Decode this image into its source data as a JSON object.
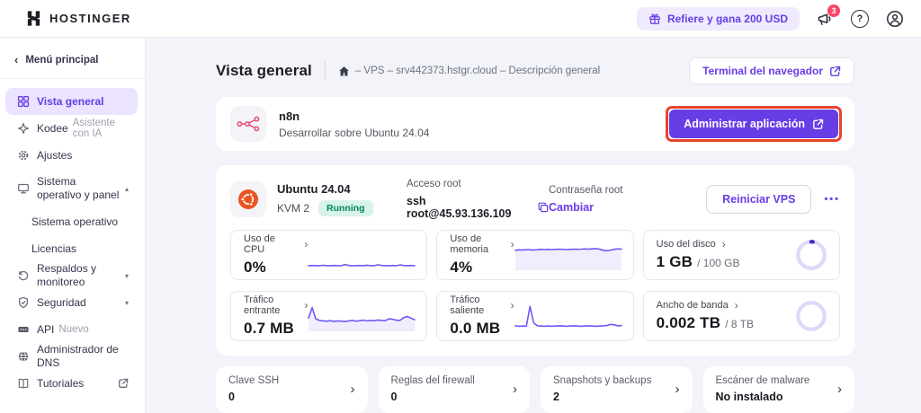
{
  "colors": {
    "accent": "#673de6",
    "highlight_box": "#e8432d",
    "status_running_bg": "#d8f3e7",
    "status_running_text": "#00875a",
    "sparkline": "#6a5bf7",
    "ring_progress": "#5025d1"
  },
  "icons": {
    "chevron_right": "›",
    "chevron_left": "‹",
    "caret_up": "▴",
    "caret_down": "▾",
    "ellipsis": "•••",
    "question": "?"
  },
  "topbar": {
    "brand": "HOSTINGER",
    "referral": "Refiere y gana 200 USD",
    "notifications": "3"
  },
  "sidebar": {
    "back": "Menú principal",
    "items": [
      {
        "label": "Vista general"
      },
      {
        "label": "Kodee",
        "suffix": "Asistente con IA"
      },
      {
        "label": "Ajustes"
      },
      {
        "label": "Sistema operativo y panel"
      },
      {
        "label": "Sistema operativo"
      },
      {
        "label": "Licencias"
      },
      {
        "label": "Respaldos y monitoreo"
      },
      {
        "label": "Seguridad"
      },
      {
        "label": "API",
        "suffix": "Nuevo"
      },
      {
        "label": "Administrador de DNS"
      },
      {
        "label": "Tutoriales"
      }
    ]
  },
  "page": {
    "title": "Vista general",
    "breadcrumb": "– VPS – srv442373.hstgr.cloud – Descripción general",
    "terminal_button": "Terminal del navegador"
  },
  "app_card": {
    "name": "n8n",
    "description": "Desarrollar sobre Ubuntu 24.04",
    "manage_button": "Administrar aplicación"
  },
  "vps": {
    "os": "Ubuntu 24.04",
    "plan": "KVM 2",
    "status": "Running",
    "access_label": "Acceso root",
    "access_value": "ssh root@45.93.136.109",
    "password_label": "Contraseña root",
    "password_action": "Cambiar",
    "restart_button": "Reiniciar VPS"
  },
  "metrics": [
    {
      "label": "Uso de CPU",
      "value": "0%",
      "suffix": "",
      "chart": "spark",
      "fill": false,
      "series": [
        0.08,
        0.09,
        0.08,
        0.08,
        0.1,
        0.08,
        0.08,
        0.09,
        0.08,
        0.08,
        0.13,
        0.09,
        0.08,
        0.08,
        0.09,
        0.08,
        0.1,
        0.08,
        0.08,
        0.12,
        0.09,
        0.08,
        0.08,
        0.09,
        0.08,
        0.11,
        0.09,
        0.08,
        0.09,
        0.08
      ]
    },
    {
      "label": "Uso de memoria",
      "value": "4%",
      "suffix": "",
      "chart": "spark",
      "fill": true,
      "series": [
        0.74,
        0.76,
        0.75,
        0.77,
        0.76,
        0.75,
        0.77,
        0.78,
        0.77,
        0.78,
        0.77,
        0.78,
        0.79,
        0.78,
        0.77,
        0.78,
        0.79,
        0.78,
        0.79,
        0.8,
        0.79,
        0.8,
        0.81,
        0.79,
        0.74,
        0.72,
        0.75,
        0.78,
        0.8,
        0.79
      ]
    },
    {
      "label": "Uso del disco",
      "value": "1 GB",
      "suffix": "/ 100 GB",
      "chart": "ring",
      "percent": 2
    },
    {
      "label": "Tráfico entrante",
      "value": "0.7 MB",
      "suffix": "",
      "chart": "spark",
      "fill": true,
      "series": [
        0.45,
        0.9,
        0.42,
        0.35,
        0.33,
        0.32,
        0.34,
        0.31,
        0.33,
        0.32,
        0.3,
        0.33,
        0.35,
        0.32,
        0.34,
        0.36,
        0.33,
        0.35,
        0.34,
        0.37,
        0.35,
        0.34,
        0.42,
        0.4,
        0.36,
        0.35,
        0.47,
        0.52,
        0.45,
        0.38
      ]
    },
    {
      "label": "Tráfico saliente",
      "value": "0.0 MB",
      "suffix": "",
      "chart": "spark",
      "fill": false,
      "series": [
        0.12,
        0.1,
        0.11,
        0.1,
        0.95,
        0.25,
        0.12,
        0.11,
        0.1,
        0.11,
        0.1,
        0.11,
        0.12,
        0.11,
        0.1,
        0.11,
        0.12,
        0.11,
        0.1,
        0.11,
        0.12,
        0.11,
        0.1,
        0.11,
        0.12,
        0.13,
        0.18,
        0.16,
        0.12,
        0.13
      ]
    },
    {
      "label": "Ancho de banda",
      "value": "0.002 TB",
      "suffix": "/ 8 TB",
      "chart": "ring",
      "percent": 0
    }
  ],
  "quick_cards": [
    {
      "label": "Clave SSH",
      "value": "0"
    },
    {
      "label": "Reglas del firewall",
      "value": "0"
    },
    {
      "label": "Snapshots y backups",
      "value": "2"
    },
    {
      "label": "Escáner de malware",
      "value": "No instalado"
    }
  ]
}
